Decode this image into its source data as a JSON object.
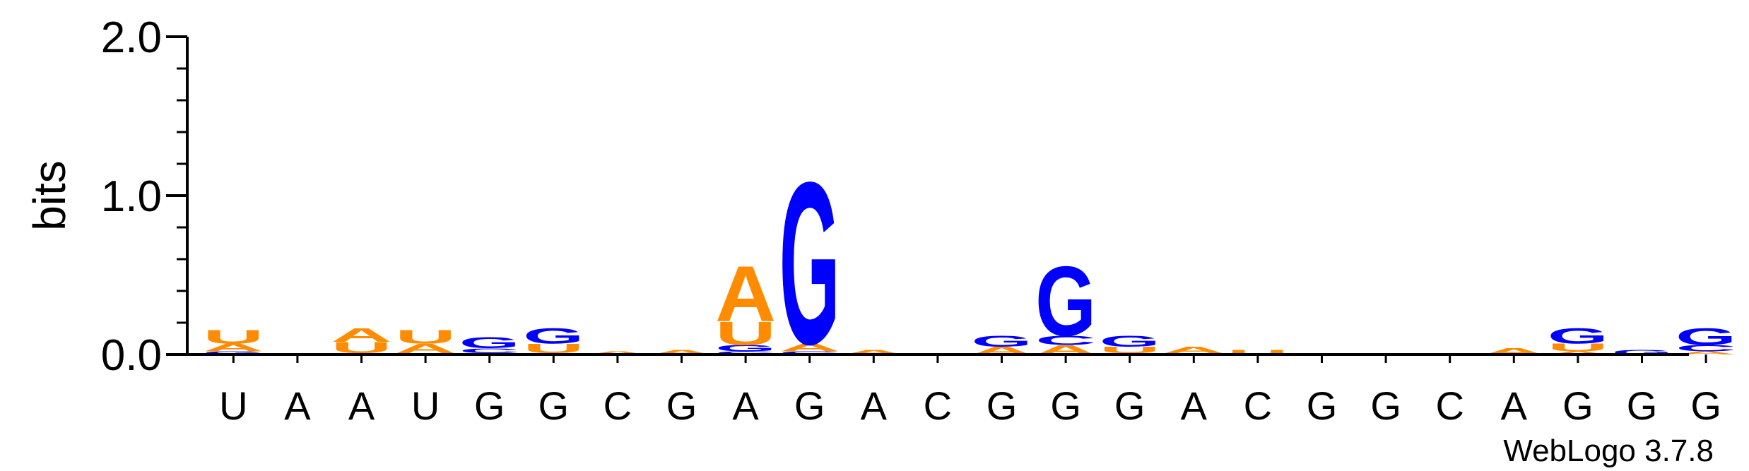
{
  "chart_data": {
    "type": "sequence-logo",
    "title": "",
    "ylabel": "bits",
    "xlabel": "",
    "ylim": [
      0,
      2.0
    ],
    "yticks": [
      "0.0",
      "1.0",
      "2.0"
    ],
    "alphabet_colors": {
      "A": "#ff8c00",
      "U": "#ff8c00",
      "G": "#0000ff",
      "C": "#0000ff"
    },
    "consensus": [
      "U",
      "A",
      "A",
      "U",
      "G",
      "G",
      "C",
      "G",
      "A",
      "G",
      "A",
      "C",
      "G",
      "G",
      "G",
      "A",
      "C",
      "G",
      "G",
      "C",
      "A",
      "G",
      "G",
      "G"
    ],
    "positions": [
      {
        "letters": [
          {
            "char": "G",
            "bits": 0.02
          },
          {
            "char": "A",
            "bits": 0.05
          },
          {
            "char": "U",
            "bits": 0.09
          }
        ]
      },
      {
        "letters": []
      },
      {
        "letters": [
          {
            "char": "G",
            "bits": 0.01
          },
          {
            "char": "U",
            "bits": 0.07
          },
          {
            "char": "A",
            "bits": 0.09
          }
        ]
      },
      {
        "letters": [
          {
            "char": "G",
            "bits": 0.01
          },
          {
            "char": "A",
            "bits": 0.06
          },
          {
            "char": "U",
            "bits": 0.09
          }
        ]
      },
      {
        "letters": [
          {
            "char": "A",
            "bits": 0.01
          },
          {
            "char": "C",
            "bits": 0.03
          },
          {
            "char": "G",
            "bits": 0.07
          }
        ]
      },
      {
        "letters": [
          {
            "char": "A",
            "bits": 0.01
          },
          {
            "char": "U",
            "bits": 0.06
          },
          {
            "char": "G",
            "bits": 0.1
          }
        ]
      },
      {
        "letters": [
          {
            "char": "A",
            "bits": 0.02
          }
        ]
      },
      {
        "letters": [
          {
            "char": "A",
            "bits": 0.03
          }
        ]
      },
      {
        "letters": [
          {
            "char": "C",
            "bits": 0.02
          },
          {
            "char": "G",
            "bits": 0.04
          },
          {
            "char": "U",
            "bits": 0.15
          },
          {
            "char": "A",
            "bits": 0.36
          }
        ]
      },
      {
        "letters": [
          {
            "char": "C",
            "bits": 0.02
          },
          {
            "char": "A",
            "bits": 0.05
          },
          {
            "char": "G",
            "bits": 1.05
          }
        ]
      },
      {
        "letters": [
          {
            "char": "A",
            "bits": 0.03
          }
        ]
      },
      {
        "letters": []
      },
      {
        "letters": [
          {
            "char": "A",
            "bits": 0.05
          },
          {
            "char": "G",
            "bits": 0.07
          }
        ]
      },
      {
        "letters": [
          {
            "char": "A",
            "bits": 0.06
          },
          {
            "char": "C",
            "bits": 0.06
          },
          {
            "char": "G",
            "bits": 0.45
          }
        ]
      },
      {
        "letters": [
          {
            "char": "A",
            "bits": 0.01
          },
          {
            "char": "U",
            "bits": 0.04
          },
          {
            "char": "G",
            "bits": 0.07
          }
        ]
      },
      {
        "letters": [
          {
            "char": "U",
            "bits": 0.01
          },
          {
            "char": "A",
            "bits": 0.04
          }
        ]
      },
      {
        "letters": [
          {
            "char": "U",
            "bits": 0.03
          }
        ]
      },
      {
        "letters": []
      },
      {
        "letters": []
      },
      {
        "letters": []
      },
      {
        "letters": [
          {
            "char": "A",
            "bits": 0.04
          }
        ]
      },
      {
        "letters": [
          {
            "char": "A",
            "bits": 0.02
          },
          {
            "char": "U",
            "bits": 0.05
          },
          {
            "char": "G",
            "bits": 0.1
          }
        ]
      },
      {
        "letters": [
          {
            "char": "G",
            "bits": 0.03
          }
        ]
      },
      {
        "letters": [
          {
            "char": "A",
            "bits": 0.02
          },
          {
            "char": "C",
            "bits": 0.04
          },
          {
            "char": "G",
            "bits": 0.11
          }
        ]
      }
    ]
  },
  "credit": "WebLogo 3.7.8"
}
